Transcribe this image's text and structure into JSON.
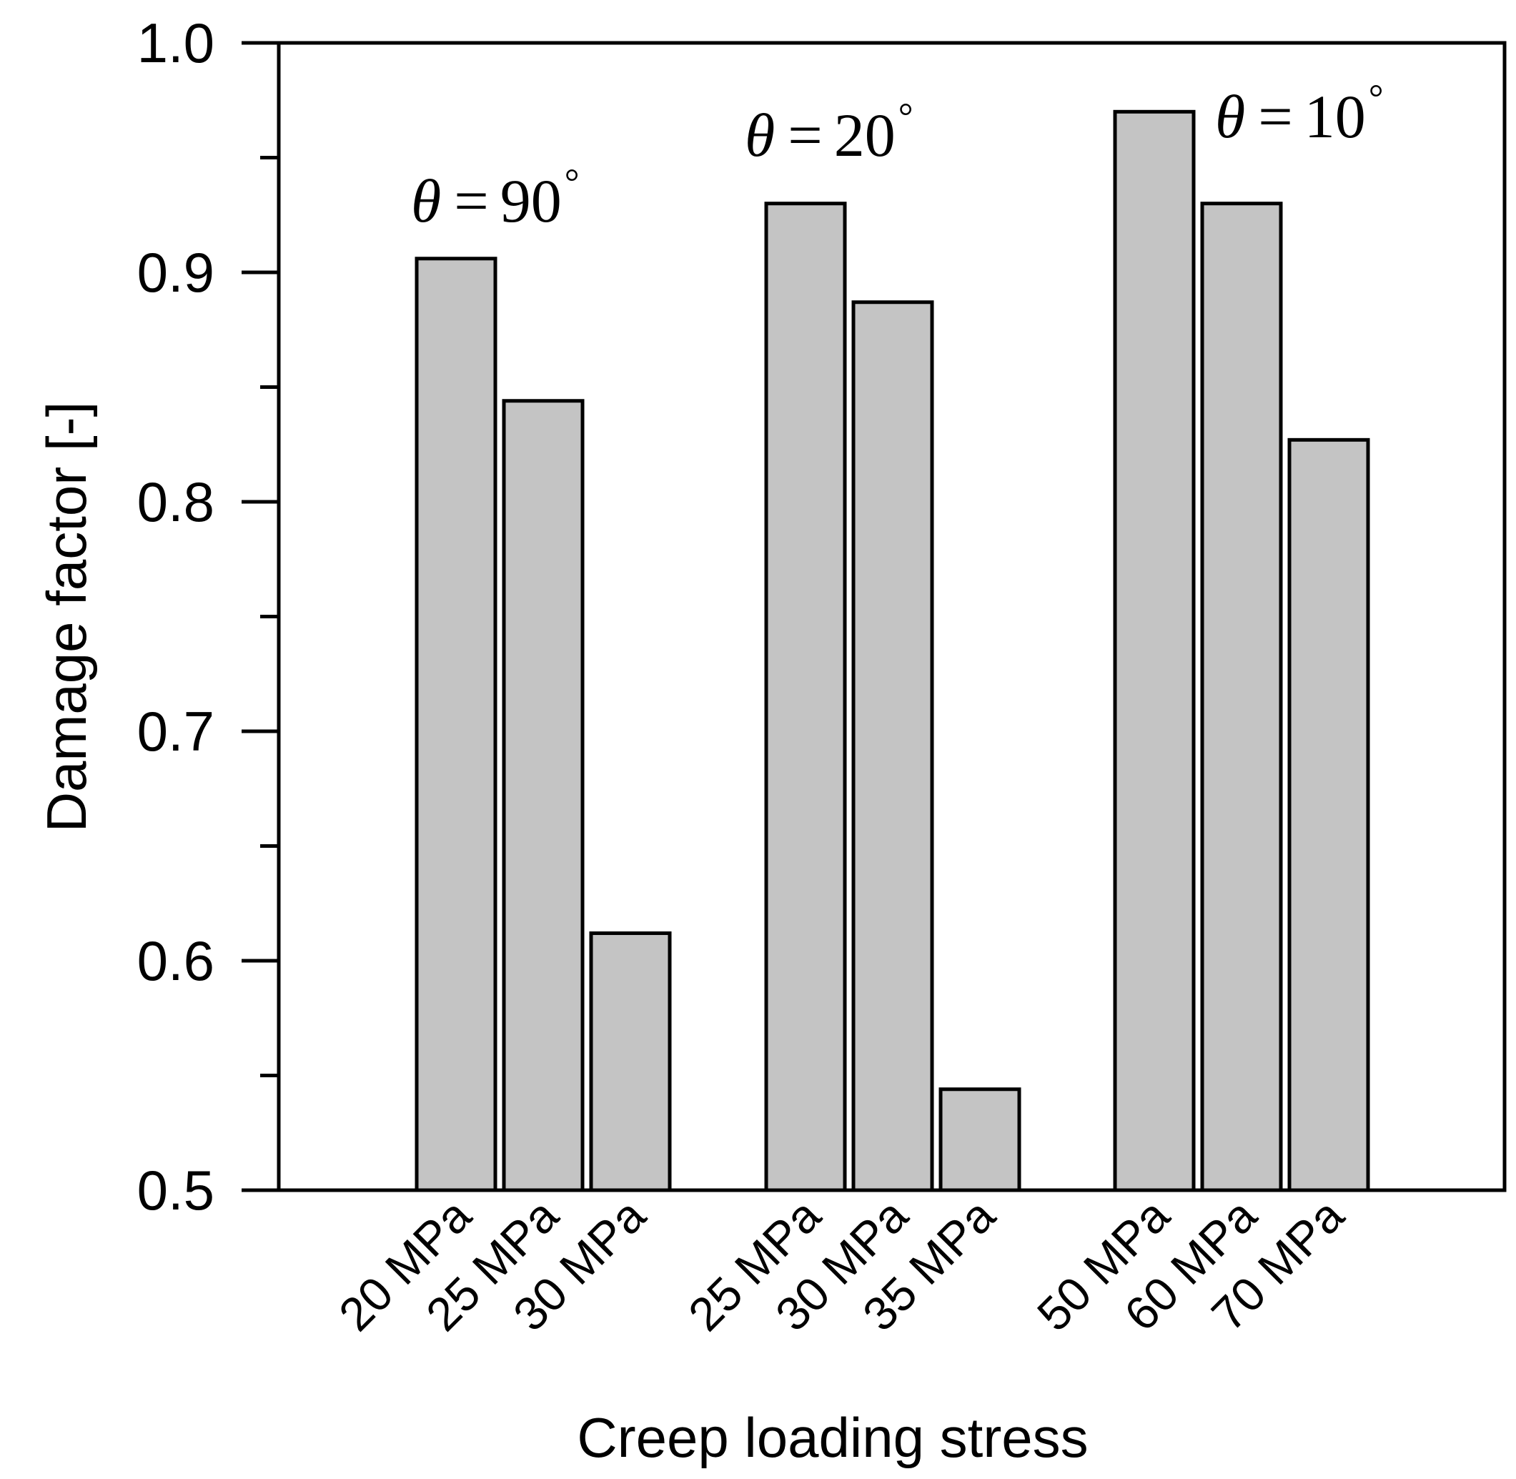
{
  "chart_data": {
    "type": "bar",
    "title": "",
    "xlabel": "Creep loading stress",
    "ylabel": "Damage factor [-]",
    "ylim": [
      0.5,
      1.0
    ],
    "y_major_ticks": [
      0.5,
      0.6,
      0.7,
      0.8,
      0.9,
      1.0
    ],
    "y_tick_labels": [
      "0.5",
      "0.6",
      "0.7",
      "0.8",
      "0.9",
      "1.0"
    ],
    "y_minor_ticks": [
      0.55,
      0.65,
      0.75,
      0.85,
      0.95
    ],
    "grid": false,
    "bar_color": "#c4c4c4",
    "edge_color": "#000000",
    "groups": [
      {
        "annotation": "θ = 90°",
        "theta_symbol": "θ",
        "equals": "=",
        "angle_value": "90",
        "degree_symbol": "°",
        "categories": [
          "20 MPa",
          "25 MPa",
          "30 MPa"
        ],
        "values": [
          0.906,
          0.844,
          0.612
        ]
      },
      {
        "annotation": "θ = 20°",
        "theta_symbol": "θ",
        "equals": "=",
        "angle_value": "20",
        "degree_symbol": "°",
        "categories": [
          "25 MPa",
          "30 MPa",
          "35 MPa"
        ],
        "values": [
          0.93,
          0.887,
          0.544
        ]
      },
      {
        "annotation": "θ = 10°",
        "theta_symbol": "θ",
        "equals": "=",
        "angle_value": "10",
        "degree_symbol": "°",
        "categories": [
          "50 MPa",
          "60 MPa",
          "70 MPa"
        ],
        "values": [
          0.97,
          0.93,
          0.827
        ]
      }
    ]
  }
}
